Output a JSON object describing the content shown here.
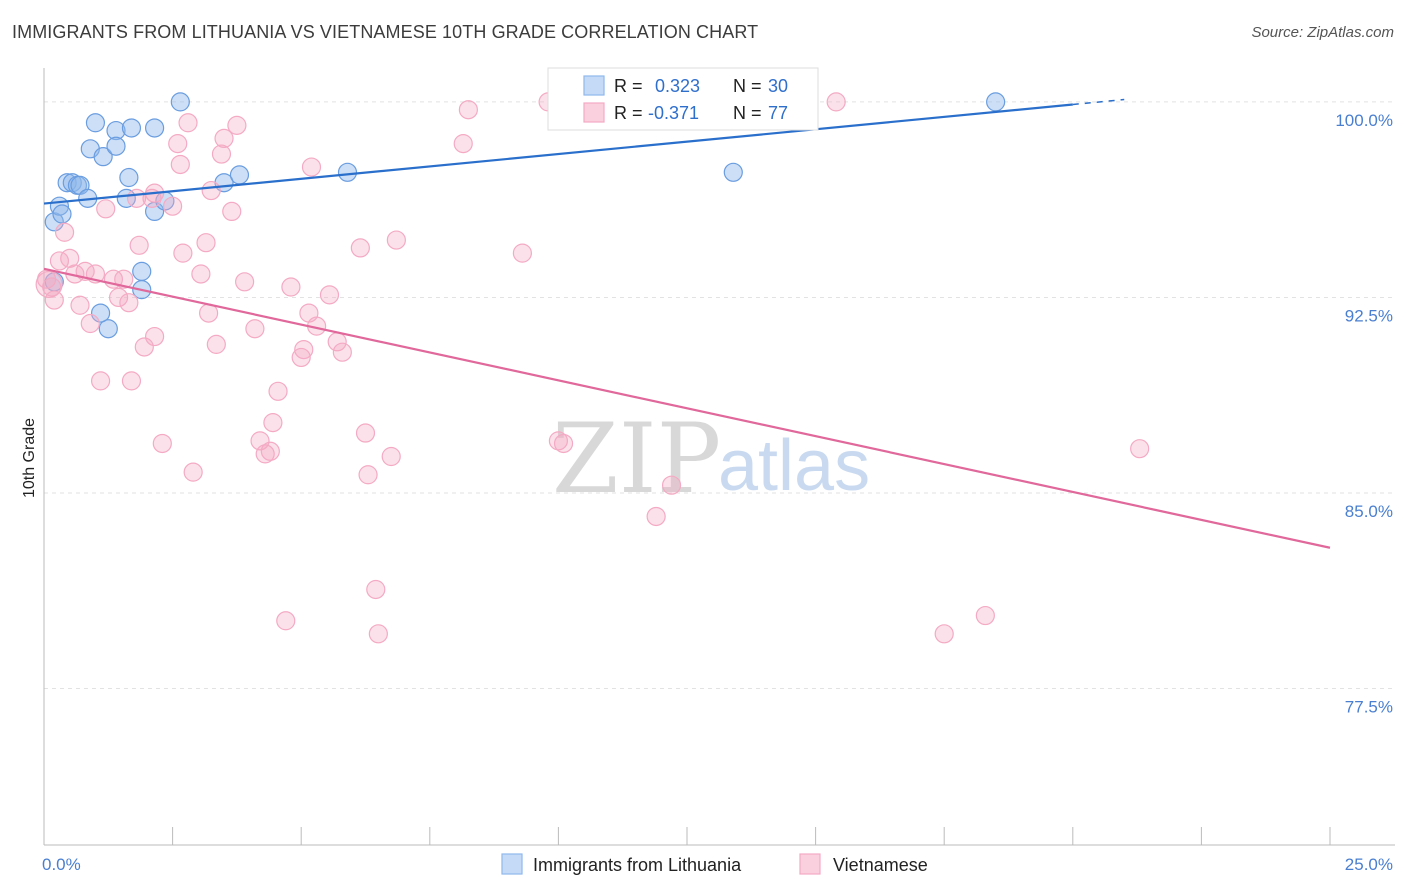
{
  "header": {
    "title": "IMMIGRANTS FROM LITHUANIA VS VIETNAMESE 10TH GRADE CORRELATION CHART",
    "source": "Source: ZipAtlas.com"
  },
  "watermark": {
    "zip": "ZIP",
    "atlas": "atlas"
  },
  "legend_box": {
    "r_label": "R =",
    "n_label": "N =",
    "series": [
      {
        "r": "0.323",
        "n": "30"
      },
      {
        "r": "-0.371",
        "n": "77"
      }
    ]
  },
  "bottom_legend": [
    "Immigrants from Lithuania",
    "Vietnamese"
  ],
  "chart_data": {
    "type": "scatter",
    "xlim": [
      0,
      25
    ],
    "ylim": [
      71.5,
      101.3
    ],
    "ylabel": "10th Grade",
    "y_ticks": [
      100.0,
      92.5,
      85.0,
      77.5
    ],
    "y_tick_labels": [
      "100.0%",
      "92.5%",
      "85.0%",
      "77.5%"
    ],
    "x_tick_labels": [
      "0.0%",
      "25.0%"
    ],
    "grid": true,
    "legend_position": "top-center",
    "colors": {
      "lithuania": "#8fb8ec",
      "lithuania_line": "#2a6fcb",
      "vietnamese": "#f4aac4",
      "vietnamese_line": "#e0689a"
    },
    "series": [
      {
        "name": "Immigrants from Lithuania",
        "r": 0.323,
        "n": 30,
        "trend": [
          [
            0.0,
            96.1
          ],
          [
            20.0,
            99.9
          ]
        ],
        "points": [
          [
            0.2,
            95.4
          ],
          [
            0.3,
            96.0
          ],
          [
            0.35,
            95.7
          ],
          [
            0.45,
            96.9
          ],
          [
            0.55,
            96.9
          ],
          [
            0.65,
            96.8
          ],
          [
            0.7,
            96.8
          ],
          [
            0.85,
            96.3
          ],
          [
            0.9,
            98.2
          ],
          [
            1.0,
            99.2
          ],
          [
            1.15,
            97.9
          ],
          [
            1.4,
            98.9
          ],
          [
            1.4,
            98.3
          ],
          [
            1.6,
            96.3
          ],
          [
            1.65,
            97.1
          ],
          [
            1.7,
            99.0
          ],
          [
            1.9,
            92.8
          ],
          [
            1.9,
            93.5
          ],
          [
            2.15,
            95.8
          ],
          [
            2.15,
            99.0
          ],
          [
            2.35,
            96.2
          ],
          [
            2.65,
            100.0
          ],
          [
            3.5,
            96.9
          ],
          [
            3.8,
            97.2
          ],
          [
            5.9,
            97.3
          ],
          [
            13.4,
            97.3
          ],
          [
            18.5,
            100.0
          ],
          [
            1.25,
            91.3
          ],
          [
            1.1,
            91.9
          ],
          [
            0.2,
            93.1
          ]
        ]
      },
      {
        "name": "Vietnamese",
        "r": -0.371,
        "n": 77,
        "trend": [
          [
            0.0,
            93.6
          ],
          [
            25.0,
            82.9
          ]
        ],
        "points": [
          [
            0.1,
            93.0
          ],
          [
            0.2,
            92.4
          ],
          [
            0.3,
            93.9
          ],
          [
            0.4,
            95.0
          ],
          [
            0.5,
            94.0
          ],
          [
            0.6,
            93.4
          ],
          [
            0.7,
            92.2
          ],
          [
            0.8,
            93.5
          ],
          [
            0.9,
            91.5
          ],
          [
            1.0,
            93.4
          ],
          [
            1.1,
            89.3
          ],
          [
            1.2,
            95.9
          ],
          [
            1.35,
            93.2
          ],
          [
            1.45,
            92.5
          ],
          [
            1.55,
            93.2
          ],
          [
            1.65,
            92.3
          ],
          [
            1.7,
            89.3
          ],
          [
            1.85,
            94.5
          ],
          [
            1.95,
            90.6
          ],
          [
            2.1,
            96.3
          ],
          [
            2.15,
            96.5
          ],
          [
            2.15,
            91.0
          ],
          [
            2.3,
            86.9
          ],
          [
            2.5,
            96.0
          ],
          [
            2.6,
            98.4
          ],
          [
            2.65,
            97.6
          ],
          [
            2.7,
            94.2
          ],
          [
            2.8,
            99.2
          ],
          [
            2.9,
            85.8
          ],
          [
            3.05,
            93.4
          ],
          [
            3.15,
            94.6
          ],
          [
            3.2,
            91.9
          ],
          [
            3.25,
            96.6
          ],
          [
            3.35,
            90.7
          ],
          [
            3.45,
            98.0
          ],
          [
            3.5,
            98.6
          ],
          [
            3.65,
            95.8
          ],
          [
            3.75,
            99.1
          ],
          [
            3.9,
            93.1
          ],
          [
            4.1,
            91.3
          ],
          [
            4.2,
            87.0
          ],
          [
            4.3,
            86.5
          ],
          [
            4.4,
            86.6
          ],
          [
            4.45,
            87.7
          ],
          [
            4.55,
            88.9
          ],
          [
            4.7,
            80.1
          ],
          [
            4.8,
            92.9
          ],
          [
            5.0,
            90.2
          ],
          [
            5.05,
            90.5
          ],
          [
            5.15,
            91.9
          ],
          [
            5.2,
            97.5
          ],
          [
            5.3,
            91.4
          ],
          [
            5.55,
            92.6
          ],
          [
            5.7,
            90.8
          ],
          [
            5.8,
            90.4
          ],
          [
            6.15,
            94.4
          ],
          [
            6.25,
            87.3
          ],
          [
            6.3,
            85.7
          ],
          [
            6.45,
            81.3
          ],
          [
            6.5,
            79.6
          ],
          [
            6.75,
            86.4
          ],
          [
            6.85,
            94.7
          ],
          [
            8.15,
            98.4
          ],
          [
            8.25,
            99.7
          ],
          [
            9.3,
            94.2
          ],
          [
            9.8,
            100.0
          ],
          [
            10.0,
            87.0
          ],
          [
            10.1,
            86.9
          ],
          [
            11.9,
            84.1
          ],
          [
            12.2,
            85.3
          ],
          [
            15.4,
            100.0
          ],
          [
            17.5,
            79.6
          ],
          [
            18.3,
            80.3
          ],
          [
            21.3,
            86.7
          ],
          [
            0.05,
            93.2
          ],
          [
            0.15,
            92.9
          ],
          [
            1.8,
            96.3
          ]
        ]
      }
    ]
  }
}
